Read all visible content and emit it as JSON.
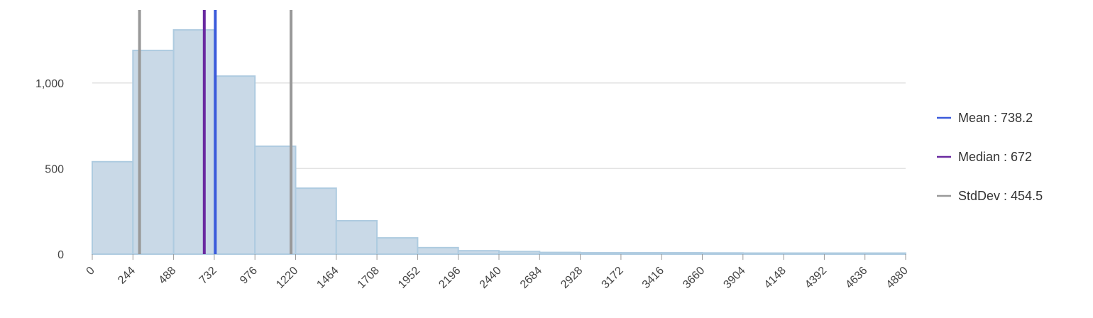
{
  "chart_data": {
    "type": "bar",
    "subtype": "histogram",
    "bin_edges": [
      0,
      244,
      488,
      732,
      976,
      1220,
      1464,
      1708,
      1952,
      2196,
      2440,
      2684,
      2928,
      3172,
      3416,
      3660,
      3904,
      4148,
      4392,
      4636,
      4880
    ],
    "values": [
      540,
      1190,
      1310,
      1040,
      630,
      385,
      195,
      95,
      38,
      20,
      15,
      10,
      8,
      8,
      8,
      7,
      6,
      6,
      6,
      6
    ],
    "x_tick_labels": [
      "0",
      "244",
      "488",
      "732",
      "976",
      "1220",
      "1464",
      "1708",
      "1952",
      "2196",
      "2440",
      "2684",
      "2928",
      "3172",
      "3416",
      "3660",
      "3904",
      "4148",
      "4392",
      "4636",
      "4880"
    ],
    "y_tick_values": [
      0,
      500,
      1000
    ],
    "y_tick_labels": [
      "0",
      "500",
      "1,000"
    ],
    "ylim": [
      0,
      1410
    ],
    "xlim": [
      0,
      4880
    ],
    "grid": "horizontal",
    "legend_position": "right",
    "bar_fill": "#c9d9e7",
    "bar_stroke": "#aecbe0",
    "reference_lines": [
      {
        "name": "Mean",
        "value": 738.2,
        "color": "#3b5bdb"
      },
      {
        "name": "Median",
        "value": 672,
        "color": "#6a2aa0"
      },
      {
        "name": "StdDev",
        "value": 454.5,
        "color": "#999999",
        "lines_at": [
          283.7,
          1192.7
        ]
      }
    ],
    "legend": [
      {
        "label": "Mean : 738.2",
        "color": "#3b5bdb"
      },
      {
        "label": "Median : 672",
        "color": "#6a2aa0"
      },
      {
        "label": "StdDev : 454.5",
        "color": "#999999"
      }
    ]
  }
}
